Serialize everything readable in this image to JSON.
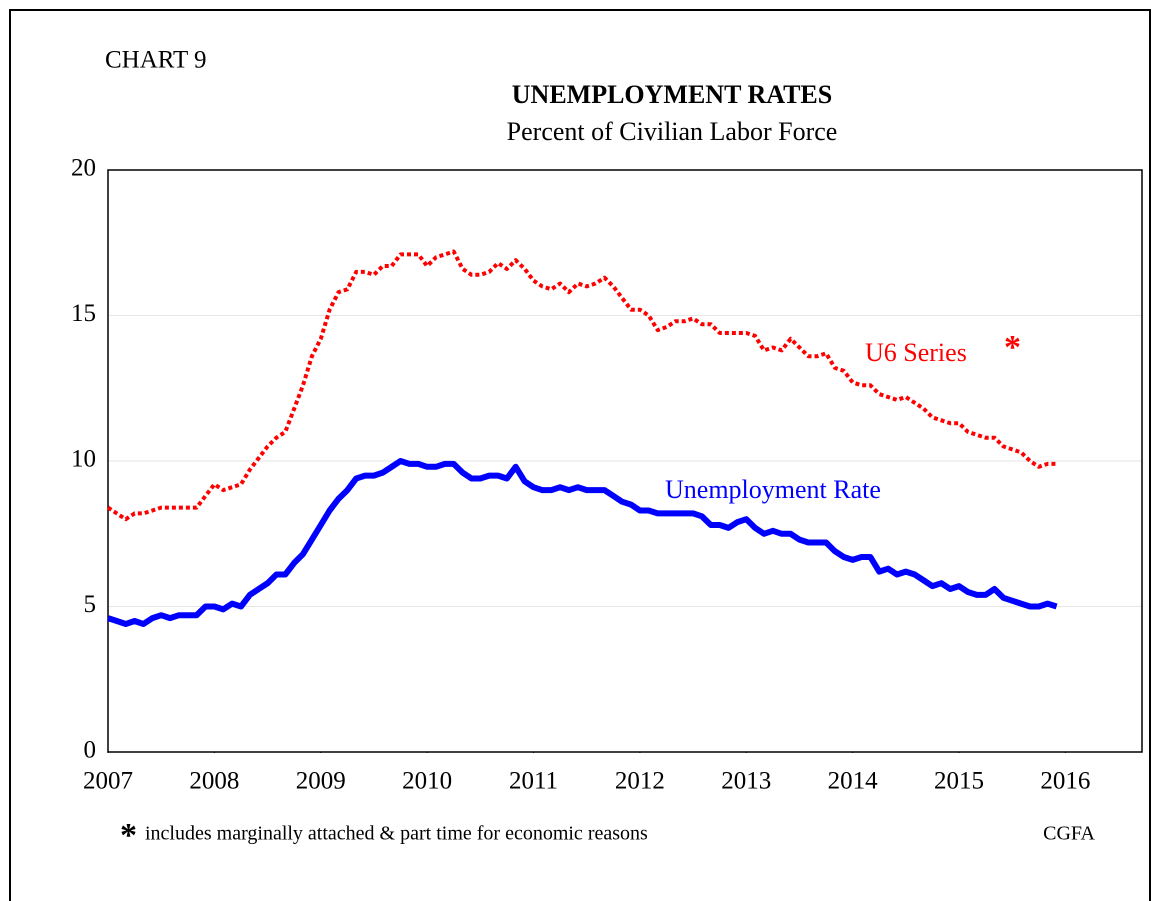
{
  "chart_data": {
    "type": "line",
    "chart_label": "CHART 9",
    "title": "UNEMPLOYMENT RATES",
    "subtitle": "Percent of Civilian Labor Force",
    "marker": "*",
    "footnote": "includes marginally attached & part time for economic reasons",
    "source": "CGFA",
    "xlim": [
      2007,
      2016.72
    ],
    "xticks": [
      2007,
      2008,
      2009,
      2010,
      2011,
      2012,
      2013,
      2014,
      2015,
      2016
    ],
    "ylim": [
      0,
      20
    ],
    "yticks": [
      0,
      5,
      10,
      15,
      20
    ],
    "grid": true,
    "x": [
      2007,
      2007.083,
      2007.167,
      2007.25,
      2007.333,
      2007.417,
      2007.5,
      2007.583,
      2007.667,
      2007.75,
      2007.833,
      2007.917,
      2008,
      2008.083,
      2008.167,
      2008.25,
      2008.333,
      2008.417,
      2008.5,
      2008.583,
      2008.667,
      2008.75,
      2008.833,
      2008.917,
      2009,
      2009.083,
      2009.167,
      2009.25,
      2009.333,
      2009.417,
      2009.5,
      2009.583,
      2009.667,
      2009.75,
      2009.833,
      2009.917,
      2010,
      2010.083,
      2010.167,
      2010.25,
      2010.333,
      2010.417,
      2010.5,
      2010.583,
      2010.667,
      2010.75,
      2010.833,
      2010.917,
      2011,
      2011.083,
      2011.167,
      2011.25,
      2011.333,
      2011.417,
      2011.5,
      2011.583,
      2011.667,
      2011.75,
      2011.833,
      2011.917,
      2012,
      2012.083,
      2012.167,
      2012.25,
      2012.333,
      2012.417,
      2012.5,
      2012.583,
      2012.667,
      2012.75,
      2012.833,
      2012.917,
      2013,
      2013.083,
      2013.167,
      2013.25,
      2013.333,
      2013.417,
      2013.5,
      2013.583,
      2013.667,
      2013.75,
      2013.833,
      2013.917,
      2014,
      2014.083,
      2014.167,
      2014.25,
      2014.333,
      2014.417,
      2014.5,
      2014.583,
      2014.667,
      2014.75,
      2014.833,
      2014.917,
      2015,
      2015.083,
      2015.167,
      2015.25,
      2015.333,
      2015.417,
      2015.5,
      2015.583,
      2015.667,
      2015.75,
      2015.833,
      2015.917
    ],
    "series": [
      {
        "name": "U6 Series",
        "color": "#ff0000",
        "style": "dotted",
        "values": [
          8.4,
          8.2,
          8.0,
          8.2,
          8.2,
          8.3,
          8.4,
          8.4,
          8.4,
          8.4,
          8.4,
          8.8,
          9.2,
          9.0,
          9.1,
          9.2,
          9.7,
          10.1,
          10.5,
          10.8,
          11.0,
          11.8,
          12.6,
          13.6,
          14.2,
          15.2,
          15.8,
          15.9,
          16.5,
          16.5,
          16.4,
          16.7,
          16.7,
          17.1,
          17.1,
          17.1,
          16.7,
          17.0,
          17.1,
          17.2,
          16.6,
          16.4,
          16.4,
          16.5,
          16.8,
          16.6,
          16.9,
          16.6,
          16.2,
          16.0,
          15.9,
          16.1,
          15.8,
          16.1,
          16.0,
          16.1,
          16.3,
          16.0,
          15.6,
          15.2,
          15.2,
          15.0,
          14.5,
          14.6,
          14.8,
          14.8,
          14.9,
          14.7,
          14.7,
          14.4,
          14.4,
          14.4,
          14.4,
          14.3,
          13.8,
          13.9,
          13.8,
          14.2,
          13.9,
          13.6,
          13.6,
          13.7,
          13.2,
          13.1,
          12.7,
          12.6,
          12.6,
          12.3,
          12.2,
          12.1,
          12.2,
          12.0,
          11.8,
          11.5,
          11.4,
          11.3,
          11.3,
          11.0,
          10.9,
          10.8,
          10.8,
          10.5,
          10.4,
          10.3,
          10.0,
          9.8,
          9.9,
          9.9
        ]
      },
      {
        "name": "Unemployment Rate",
        "color": "#0000ff",
        "style": "solid",
        "values": [
          4.6,
          4.5,
          4.4,
          4.5,
          4.4,
          4.6,
          4.7,
          4.6,
          4.7,
          4.7,
          4.7,
          5.0,
          5.0,
          4.9,
          5.1,
          5.0,
          5.4,
          5.6,
          5.8,
          6.1,
          6.1,
          6.5,
          6.8,
          7.3,
          7.8,
          8.3,
          8.7,
          9.0,
          9.4,
          9.5,
          9.5,
          9.6,
          9.8,
          10.0,
          9.9,
          9.9,
          9.8,
          9.8,
          9.9,
          9.9,
          9.6,
          9.4,
          9.4,
          9.5,
          9.5,
          9.4,
          9.8,
          9.3,
          9.1,
          9.0,
          9.0,
          9.1,
          9.0,
          9.1,
          9.0,
          9.0,
          9.0,
          8.8,
          8.6,
          8.5,
          8.3,
          8.3,
          8.2,
          8.2,
          8.2,
          8.2,
          8.2,
          8.1,
          7.8,
          7.8,
          7.7,
          7.9,
          8.0,
          7.7,
          7.5,
          7.6,
          7.5,
          7.5,
          7.3,
          7.2,
          7.2,
          7.2,
          6.9,
          6.7,
          6.6,
          6.7,
          6.7,
          6.2,
          6.3,
          6.1,
          6.2,
          6.1,
          5.9,
          5.7,
          5.8,
          5.6,
          5.7,
          5.5,
          5.4,
          5.4,
          5.6,
          5.3,
          5.2,
          5.1,
          5.0,
          5.0,
          5.1,
          5.0
        ]
      }
    ]
  }
}
